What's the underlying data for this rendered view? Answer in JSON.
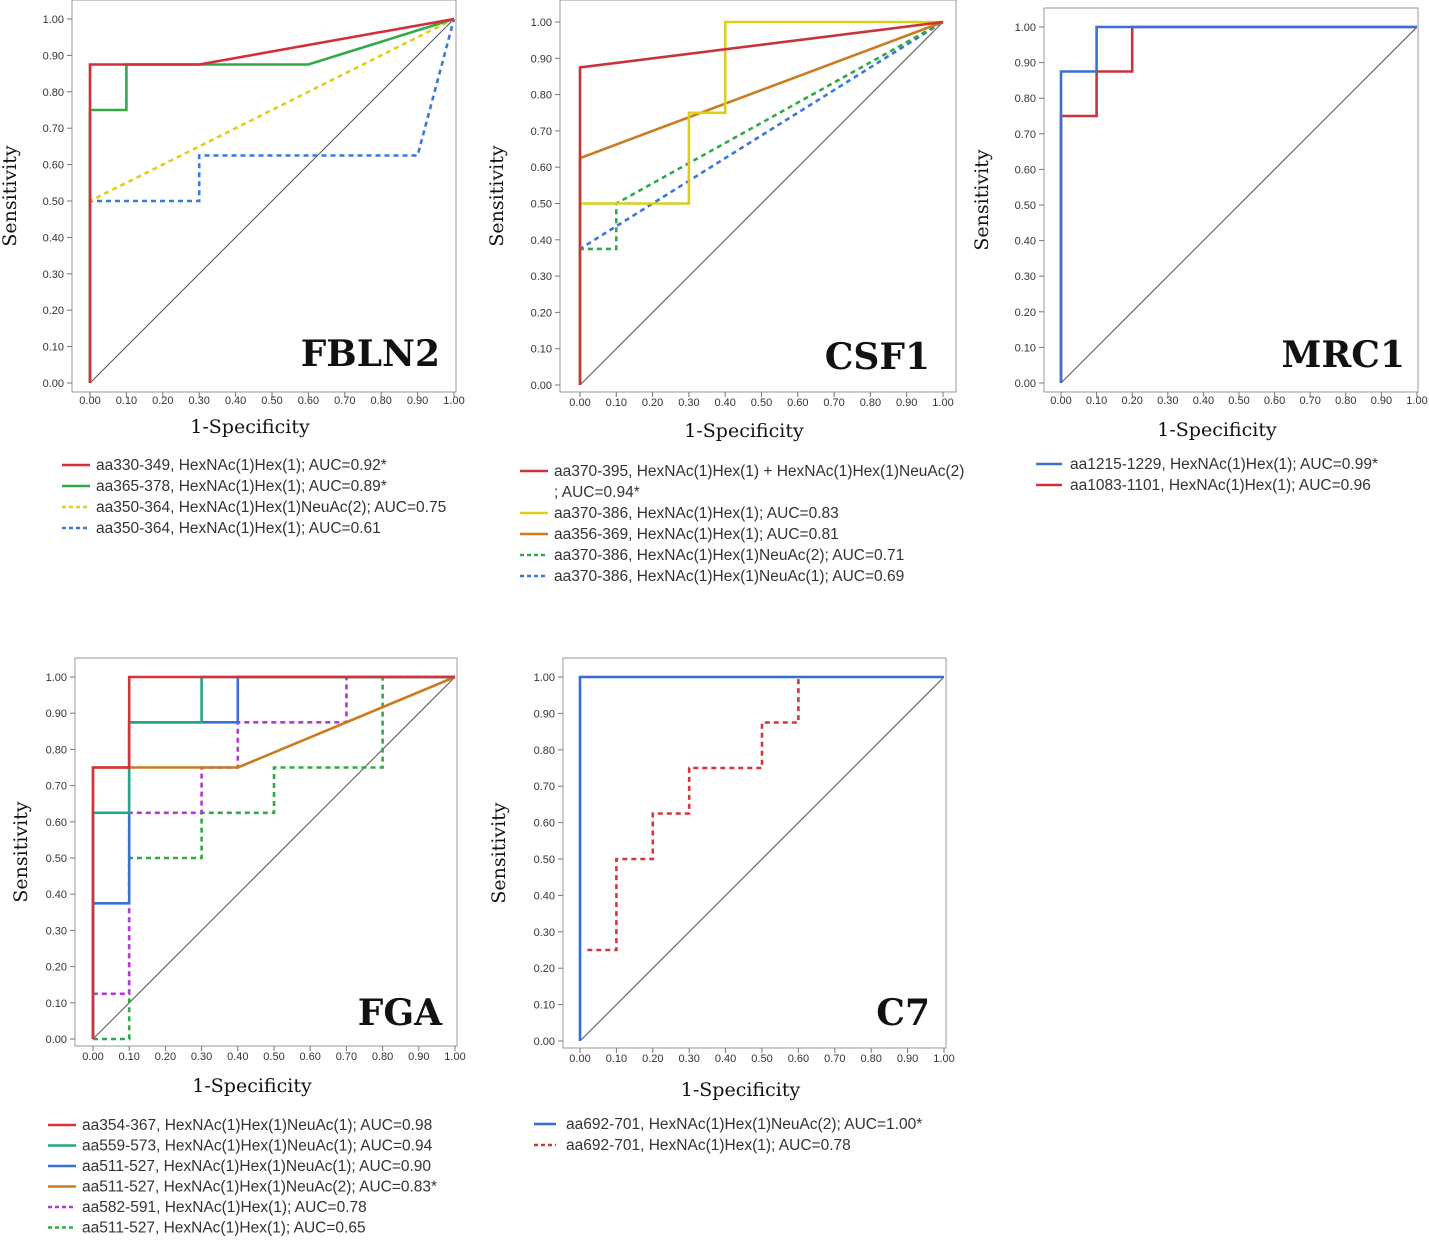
{
  "chart_data": [
    {
      "type": "line",
      "title": "FBLN2",
      "xlabel": "1-Specificity",
      "ylabel": "Sensitivity",
      "xlim": [
        0,
        1
      ],
      "ylim": [
        0,
        1
      ],
      "x_ticks": [
        "0.00",
        "0.10",
        "0.20",
        "0.30",
        "0.40",
        "0.50",
        "0.60",
        "0.70",
        "0.80",
        "0.90",
        "1.00"
      ],
      "y_ticks": [
        "0.00",
        "0.10",
        "0.20",
        "0.30",
        "0.40",
        "0.50",
        "0.60",
        "0.70",
        "0.80",
        "0.90",
        "1.00"
      ],
      "series": [
        {
          "name": "aa330-349, HexNAc(1)Hex(1); AUC=0.92*",
          "color": "#d32f3a",
          "dashed": false,
          "points": [
            [
              0,
              0
            ],
            [
              0,
              0.875
            ],
            [
              0.1,
              0.875
            ],
            [
              0.3,
              0.875
            ],
            [
              1,
              1
            ]
          ]
        },
        {
          "name": "aa365-378, HexNAc(1)Hex(1); AUC=0.89*",
          "color": "#2eaa46",
          "dashed": false,
          "points": [
            [
              0,
              0
            ],
            [
              0,
              0.75
            ],
            [
              0.1,
              0.75
            ],
            [
              0.1,
              0.875
            ],
            [
              0.6,
              0.875
            ],
            [
              1,
              1
            ]
          ]
        },
        {
          "name": "aa350-364, HexNAc(1)Hex(1)NeuAc(2); AUC=0.75",
          "color": "#e2cc1c",
          "dashed": true,
          "points": [
            [
              0,
              0
            ],
            [
              0,
              0.5
            ],
            [
              1,
              1
            ]
          ]
        },
        {
          "name": "aa350-364, HexNAc(1)Hex(1); AUC=0.61",
          "color": "#3a78dc",
          "dashed": true,
          "points": [
            [
              0,
              0
            ],
            [
              0,
              0.5
            ],
            [
              0.3,
              0.5
            ],
            [
              0.3,
              0.625
            ],
            [
              0.9,
              0.625
            ],
            [
              1,
              1
            ]
          ]
        }
      ]
    },
    {
      "type": "line",
      "title": "CSF1",
      "xlabel": "1-Specificity",
      "ylabel": "Sensitivity",
      "xlim": [
        0,
        1
      ],
      "ylim": [
        0,
        1
      ],
      "x_ticks": [
        "0.00",
        "0.10",
        "0.20",
        "0.30",
        "0.40",
        "0.50",
        "0.60",
        "0.70",
        "0.80",
        "0.90",
        "1.00"
      ],
      "y_ticks": [
        "0.00",
        "0.10",
        "0.20",
        "0.30",
        "0.40",
        "0.50",
        "0.60",
        "0.70",
        "0.80",
        "0.90",
        "1.00"
      ],
      "series": [
        {
          "name": "aa370-395, HexNAc(1)Hex(1) + HexNAc(1)Hex(1)NeuAc(2)",
          "name_line2": "; AUC=0.94*",
          "color": "#c8343c",
          "dashed": false,
          "points": [
            [
              0,
              0
            ],
            [
              0,
              0.875
            ],
            [
              1,
              1
            ]
          ]
        },
        {
          "name": "aa370-386, HexNAc(1)Hex(1); AUC=0.83",
          "color": "#dccf1c",
          "dashed": false,
          "points": [
            [
              0,
              0
            ],
            [
              0,
              0.5
            ],
            [
              0.3,
              0.5
            ],
            [
              0.3,
              0.75
            ],
            [
              0.4,
              0.75
            ],
            [
              0.4,
              1
            ],
            [
              1,
              1
            ]
          ]
        },
        {
          "name": "aa356-369, HexNAc(1)Hex(1); AUC=0.81",
          "color": "#cc7a1e",
          "dashed": false,
          "points": [
            [
              0,
              0
            ],
            [
              0,
              0.625
            ],
            [
              1,
              1
            ]
          ]
        },
        {
          "name": "aa370-386, HexNAc(1)Hex(1)NeuAc(2); AUC=0.71",
          "color": "#2eaa46",
          "dashed": true,
          "points": [
            [
              0,
              0
            ],
            [
              0,
              0.375
            ],
            [
              0.1,
              0.375
            ],
            [
              0.1,
              0.5
            ],
            [
              1,
              1
            ]
          ]
        },
        {
          "name": "aa370-386, HexNAc(1)Hex(1)NeuAc(1); AUC=0.69",
          "color": "#3a78dc",
          "dashed": true,
          "points": [
            [
              0,
              0
            ],
            [
              0,
              0.375
            ],
            [
              1,
              1
            ]
          ]
        }
      ]
    },
    {
      "type": "line",
      "title": "MRC1",
      "xlabel": "1-Specificity",
      "ylabel": "Sensitivity",
      "xlim": [
        0,
        1
      ],
      "ylim": [
        0,
        1
      ],
      "x_ticks": [
        "0.00",
        "0.10",
        "0.20",
        "0.30",
        "0.40",
        "0.50",
        "0.60",
        "0.70",
        "0.80",
        "0.90",
        "1.00"
      ],
      "y_ticks": [
        "0.00",
        "0.10",
        "0.20",
        "0.30",
        "0.40",
        "0.50",
        "0.60",
        "0.70",
        "0.80",
        "0.90",
        "1.00"
      ],
      "series": [
        {
          "name": "aa1215-1229, HexNAc(1)Hex(1); AUC=0.99*",
          "color": "#3a6fd6",
          "dashed": false,
          "points": [
            [
              0,
              0
            ],
            [
              0,
              0.875
            ],
            [
              0.1,
              0.875
            ],
            [
              0.1,
              1
            ],
            [
              1,
              1
            ]
          ]
        },
        {
          "name": "aa1083-1101, HexNAc(1)Hex(1); AUC=0.96",
          "color": "#c8343c",
          "dashed": false,
          "points": [
            [
              0,
              0
            ],
            [
              0,
              0.75
            ],
            [
              0.1,
              0.75
            ],
            [
              0.1,
              0.875
            ],
            [
              0.2,
              0.875
            ],
            [
              0.2,
              1
            ],
            [
              1,
              1
            ]
          ]
        }
      ]
    },
    {
      "type": "line",
      "title": "FGA",
      "xlabel": "1-Specificity",
      "ylabel": "Sensitivity",
      "xlim": [
        0,
        1
      ],
      "ylim": [
        0,
        1
      ],
      "x_ticks": [
        "0.00",
        "0.10",
        "0.20",
        "0.30",
        "0.40",
        "0.50",
        "0.60",
        "0.70",
        "0.80",
        "0.90",
        "1.00"
      ],
      "y_ticks": [
        "0.00",
        "0.10",
        "0.20",
        "0.30",
        "0.40",
        "0.50",
        "0.60",
        "0.70",
        "0.80",
        "0.90",
        "1.00"
      ],
      "series": [
        {
          "name": "aa354-367, HexNAc(1)Hex(1)NeuAc(1); AUC=0.98",
          "color": "#d2343c",
          "dashed": false,
          "points": [
            [
              0,
              0
            ],
            [
              0,
              0.75
            ],
            [
              0.1,
              0.75
            ],
            [
              0.1,
              1
            ],
            [
              1,
              1
            ]
          ]
        },
        {
          "name": "aa559-573, HexNAc(1)Hex(1)NeuAc(1); AUC=0.94",
          "color": "#26a486",
          "dashed": false,
          "points": [
            [
              0,
              0
            ],
            [
              0,
              0.625
            ],
            [
              0.1,
              0.625
            ],
            [
              0.1,
              0.875
            ],
            [
              0.3,
              0.875
            ],
            [
              0.3,
              1
            ],
            [
              1,
              1
            ]
          ]
        },
        {
          "name": "aa511-527, HexNAc(1)Hex(1)NeuAc(1); AUC=0.90",
          "color": "#3a6fd6",
          "dashed": false,
          "points": [
            [
              0,
              0
            ],
            [
              0,
              0.375
            ],
            [
              0.1,
              0.375
            ],
            [
              0.1,
              0.875
            ],
            [
              0.4,
              0.875
            ],
            [
              0.4,
              1
            ],
            [
              1,
              1
            ]
          ]
        },
        {
          "name": "aa511-527, HexNAc(1)Hex(1)NeuAc(2); AUC=0.83*",
          "color": "#cc7a1e",
          "dashed": false,
          "points": [
            [
              0,
              0
            ],
            [
              0,
              0.75
            ],
            [
              0.4,
              0.75
            ],
            [
              1,
              1
            ]
          ]
        },
        {
          "name": "aa582-591, HexNAc(1)Hex(1); AUC=0.78",
          "color": "#b03ad6",
          "dashed": true,
          "points": [
            [
              0,
              0
            ],
            [
              0,
              0.125
            ],
            [
              0.1,
              0.125
            ],
            [
              0.1,
              0.625
            ],
            [
              0.3,
              0.625
            ],
            [
              0.3,
              0.75
            ],
            [
              0.4,
              0.75
            ],
            [
              0.4,
              0.875
            ],
            [
              0.7,
              0.875
            ],
            [
              0.7,
              1
            ],
            [
              1,
              1
            ]
          ]
        },
        {
          "name": "aa511-527, HexNAc(1)Hex(1); AUC=0.65",
          "color": "#2eaa46",
          "dashed": true,
          "points": [
            [
              0,
              0
            ],
            [
              0.1,
              0
            ],
            [
              0.1,
              0.5
            ],
            [
              0.3,
              0.5
            ],
            [
              0.3,
              0.625
            ],
            [
              0.5,
              0.625
            ],
            [
              0.5,
              0.75
            ],
            [
              0.8,
              0.75
            ],
            [
              0.8,
              1
            ],
            [
              1,
              1
            ]
          ]
        }
      ]
    },
    {
      "type": "line",
      "title": "C7",
      "xlabel": "1-Specificity",
      "ylabel": "Sensitivity",
      "xlim": [
        0,
        1
      ],
      "ylim": [
        0,
        1
      ],
      "x_ticks": [
        "0.00",
        "0.10",
        "0.20",
        "0.30",
        "0.40",
        "0.50",
        "0.60",
        "0.70",
        "0.80",
        "0.90",
        "1.00"
      ],
      "y_ticks": [
        "0.00",
        "0.10",
        "0.20",
        "0.30",
        "0.40",
        "0.50",
        "0.60",
        "0.70",
        "0.80",
        "0.90",
        "1.00"
      ],
      "series": [
        {
          "name": "aa692-701, HexNAc(1)Hex(1)NeuAc(2); AUC=1.00*",
          "color": "#2f6fd6",
          "dashed": false,
          "points": [
            [
              0,
              0
            ],
            [
              0,
              1
            ],
            [
              1,
              1
            ]
          ]
        },
        {
          "name": "aa692-701, HexNAc(1)Hex(1); AUC=0.78",
          "color": "#d8343c",
          "dashed": true,
          "points": [
            [
              0.02,
              0.25
            ],
            [
              0.1,
              0.25
            ],
            [
              0.1,
              0.5
            ],
            [
              0.2,
              0.5
            ],
            [
              0.2,
              0.625
            ],
            [
              0.3,
              0.625
            ],
            [
              0.3,
              0.75
            ],
            [
              0.5,
              0.75
            ],
            [
              0.5,
              0.875
            ],
            [
              0.6,
              0.875
            ],
            [
              0.6,
              1
            ]
          ]
        }
      ]
    }
  ]
}
